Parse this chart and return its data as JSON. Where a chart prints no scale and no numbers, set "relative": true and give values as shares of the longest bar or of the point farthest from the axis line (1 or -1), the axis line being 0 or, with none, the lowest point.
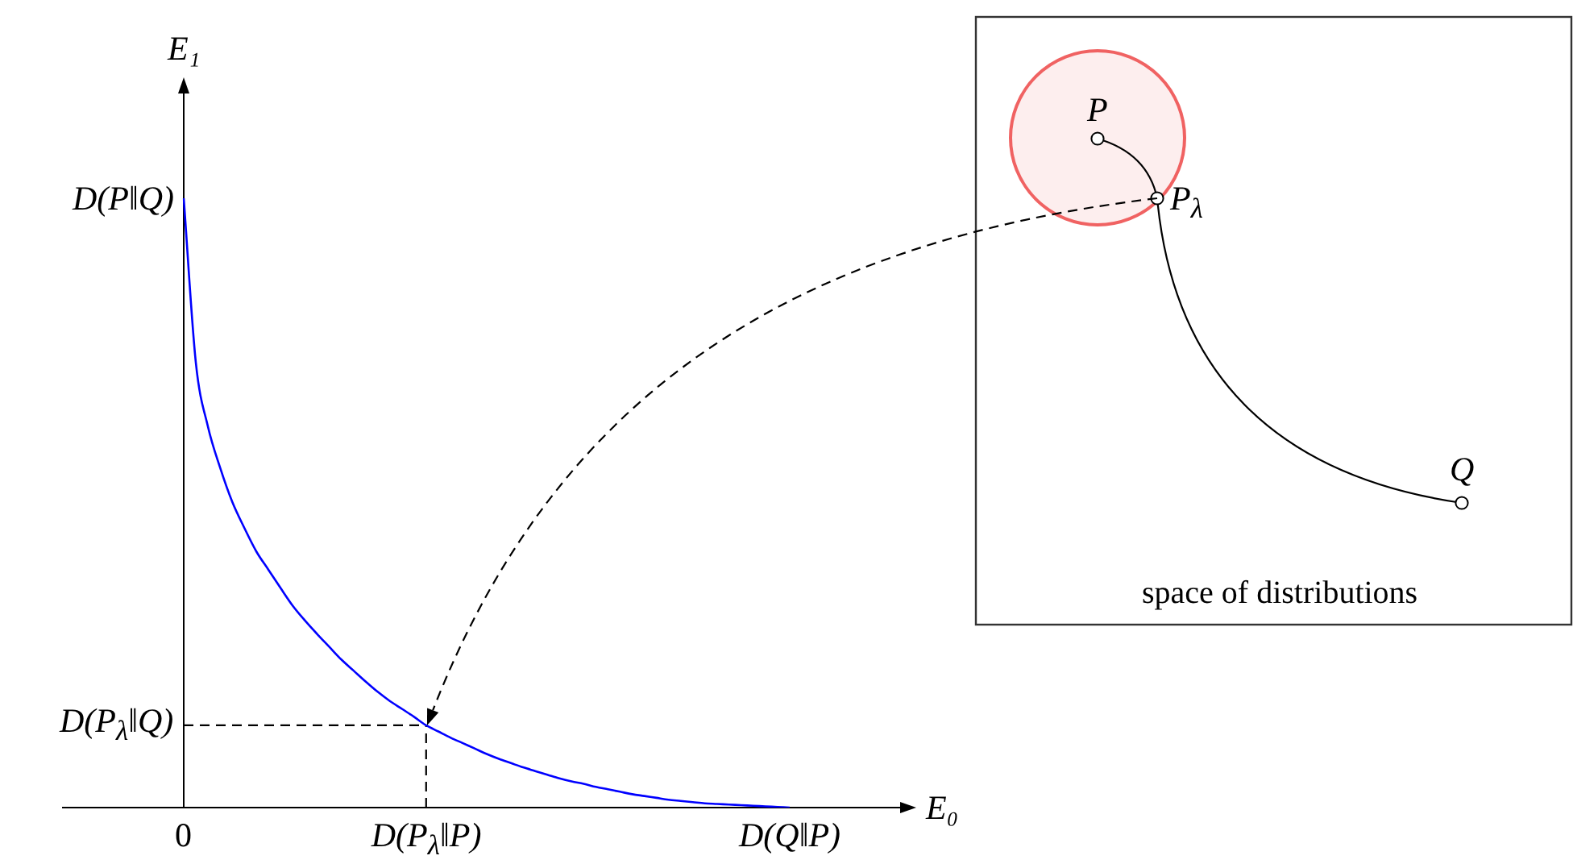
{
  "chart_data": {
    "type": "line",
    "relative": true,
    "xlabel": "E₀",
    "ylabel": "E₁",
    "marker": "none",
    "categories": [
      "0",
      null,
      null,
      null,
      null,
      null,
      null,
      null,
      null,
      null,
      null,
      null,
      null,
      null,
      null,
      null,
      null,
      null,
      null,
      null,
      "D(P$_{λ}$‖P)",
      null,
      null,
      null,
      null,
      null,
      null,
      null,
      null,
      null,
      null,
      null,
      null,
      null,
      null,
      null,
      null,
      null,
      null,
      null,
      null,
      null,
      null,
      null,
      null,
      null,
      null,
      null,
      null,
      null,
      "D(Q‖P)"
    ],
    "series": [
      {
        "color": "#0000ff",
        "line_style": "solid",
        "values": [
          1,
          0.73,
          0.625,
          0.558,
          0.502,
          0.459,
          0.42,
          0.39,
          0.36,
          0.331,
          0.307,
          0.285,
          0.264,
          0.243,
          0.225,
          0.207,
          0.19,
          0.175,
          0.162,
          0.149,
          0.135,
          0.125,
          0.115,
          0.106,
          0.097,
          0.088,
          0.08,
          0.073,
          0.066,
          0.06,
          0.054,
          0.048,
          0.043,
          0.039,
          0.034,
          0.03,
          0.026,
          0.022,
          0.019,
          0.016,
          0.013,
          0.011,
          0.009,
          0.007,
          0.006,
          0.005,
          0.004,
          0.003,
          0.002,
          0.001,
          0
        ]
      }
    ],
    "ref_lines": [
      {
        "axis": "y",
        "value": 0.135,
        "label": "D(P$_{λ}$‖Q)",
        "color": "#000000",
        "line_style": "dashed"
      },
      {
        "axis": "x",
        "value": "D(P$_{λ}$‖P)",
        "color": "#000000",
        "line_style": "dashed"
      }
    ],
    "annotations": [
      "D(P‖Q)",
      "P",
      "P$_{λ}$",
      "Q",
      "space of distributions"
    ]
  }
}
